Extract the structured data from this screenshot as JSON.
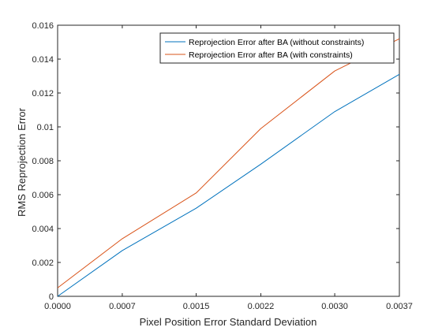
{
  "chart_data": {
    "type": "line",
    "title": "",
    "xlabel": "Pixel Position Error Standard Deviation",
    "ylabel": "RMS Reprojection Error",
    "xlim": [
      0,
      0.0037
    ],
    "ylim": [
      0,
      0.016
    ],
    "x_ticks": [
      0,
      0.0007,
      0.0015,
      0.0022,
      0.003,
      0.0037
    ],
    "x_tick_labels": [
      "0.0000",
      "0.0007",
      "0.0015",
      "0.0022",
      "0.0030",
      "0.0037"
    ],
    "y_ticks": [
      0,
      0.002,
      0.004,
      0.006,
      0.008,
      0.01,
      0.012,
      0.014,
      0.016
    ],
    "y_tick_labels": [
      "0",
      "0.002",
      "0.004",
      "0.006",
      "0.008",
      "0.01",
      "0.012",
      "0.014",
      "0.016"
    ],
    "grid": false,
    "legend_position": "top-right",
    "x": [
      0,
      0.0007,
      0.0015,
      0.0022,
      0.003,
      0.0037
    ],
    "series": [
      {
        "name": "Reprojection Error after BA (without constraints)",
        "color": "#0072BD",
        "values": [
          0.0,
          0.0027,
          0.0052,
          0.0078,
          0.0109,
          0.0131
        ]
      },
      {
        "name": "Reprojection Error after BA (with constraints)",
        "color": "#D95319",
        "values": [
          0.0005,
          0.0034,
          0.0061,
          0.0099,
          0.0133,
          0.0152
        ]
      }
    ]
  }
}
